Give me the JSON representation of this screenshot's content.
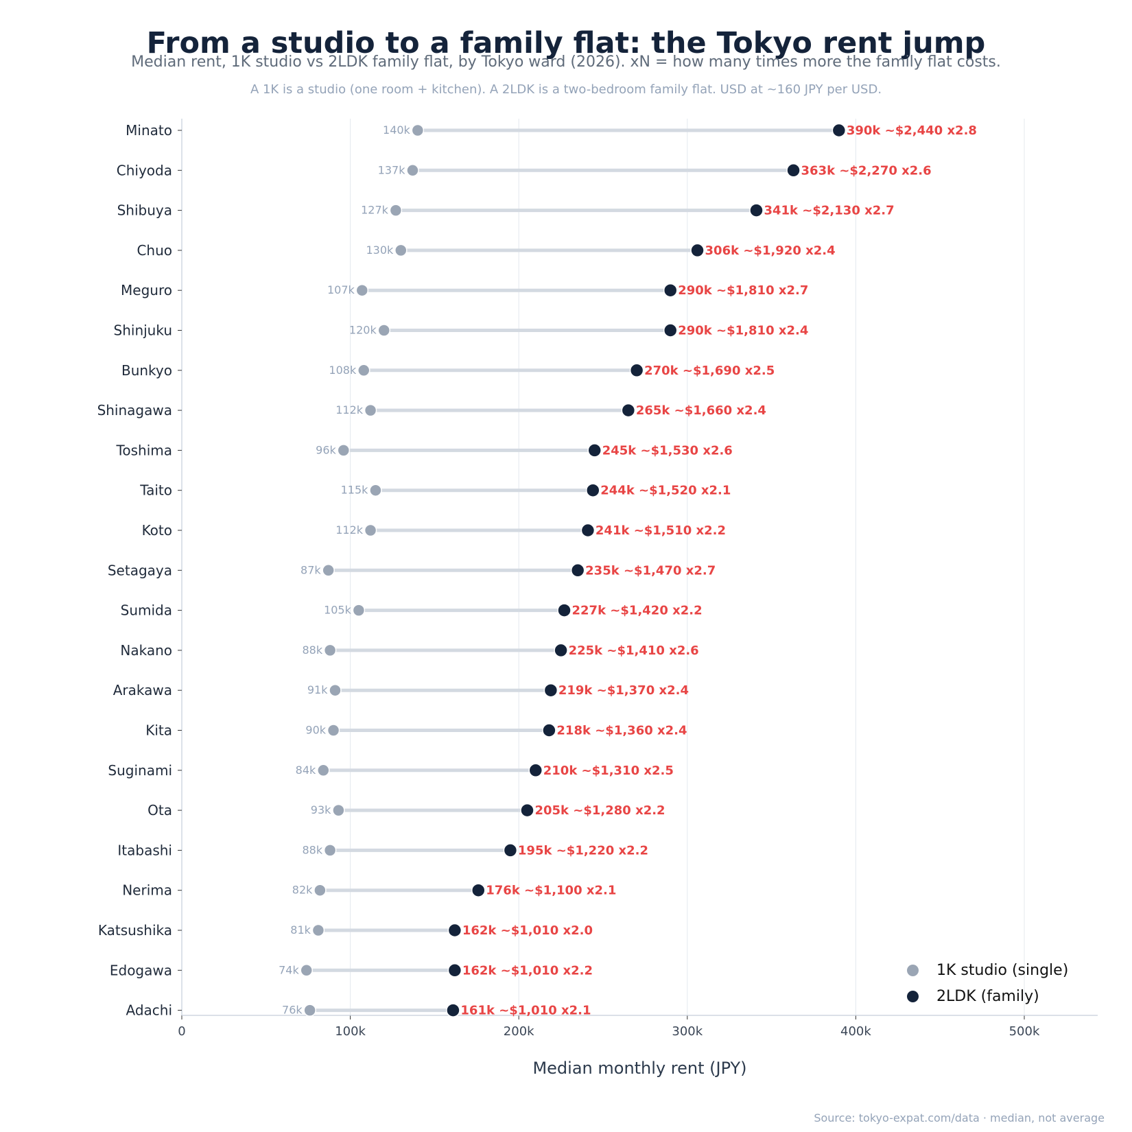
{
  "title": "From a studio to a family flat: the Tokyo rent jump",
  "subtitle": "Median rent, 1K studio vs 2LDK family flat, by Tokyo ward (2026). xN = how many times more the family flat costs.",
  "note": "A 1K is a studio (one room + kitchen). A 2LDK is a two-bedroom family flat. USD at ~160 JPY per USD.",
  "source": "Source: tokyo-expat.com/data  ·  median, not average",
  "colors": {
    "studio": "#9aa5b4",
    "family": "#14233a",
    "connector": "#d3d9e1",
    "annotation": "#e84545",
    "grid": "#e8ecf1",
    "axis": "#c5ceda"
  },
  "legend": [
    {
      "label": "1K studio (single)",
      "color": "#9aa5b4"
    },
    {
      "label": "2LDK (family)",
      "color": "#14233a"
    }
  ],
  "chart_data": {
    "type": "dumbbell",
    "xlabel": "Median monthly rent (JPY)",
    "ylabel": "",
    "xlim": [
      0,
      545000
    ],
    "xticks": [
      0,
      100000,
      200000,
      300000,
      400000,
      500000
    ],
    "xtick_labels": [
      "0",
      "100k",
      "200k",
      "300k",
      "400k",
      "500k"
    ],
    "grid": "vertical",
    "legend_position": "bottom-right",
    "categories": [
      "Minato",
      "Chiyoda",
      "Shibuya",
      "Chuo",
      "Meguro",
      "Shinjuku",
      "Bunkyo",
      "Shinagawa",
      "Toshima",
      "Taito",
      "Koto",
      "Setagaya",
      "Sumida",
      "Nakano",
      "Arakawa",
      "Kita",
      "Suginami",
      "Ota",
      "Itabashi",
      "Nerima",
      "Katsushika",
      "Edogawa",
      "Adachi"
    ],
    "series": [
      {
        "name": "1K studio (single)",
        "values": [
          140000,
          137000,
          127000,
          130000,
          107000,
          120000,
          108000,
          112000,
          96000,
          115000,
          112000,
          87000,
          105000,
          88000,
          91000,
          90000,
          84000,
          93000,
          88000,
          82000,
          81000,
          74000,
          76000
        ],
        "labels": [
          "140k",
          "137k",
          "127k",
          "130k",
          "107k",
          "120k",
          "108k",
          "112k",
          "96k",
          "115k",
          "112k",
          "87k",
          "105k",
          "88k",
          "91k",
          "90k",
          "84k",
          "93k",
          "88k",
          "82k",
          "81k",
          "74k",
          "76k"
        ]
      },
      {
        "name": "2LDK (family)",
        "values": [
          390000,
          363000,
          341000,
          306000,
          290000,
          290000,
          270000,
          265000,
          245000,
          244000,
          241000,
          235000,
          227000,
          225000,
          219000,
          218000,
          210000,
          205000,
          195000,
          176000,
          162000,
          162000,
          161000
        ],
        "labels": [
          "390k",
          "363k",
          "341k",
          "306k",
          "290k",
          "290k",
          "270k",
          "265k",
          "245k",
          "244k",
          "241k",
          "235k",
          "227k",
          "225k",
          "219k",
          "218k",
          "210k",
          "205k",
          "195k",
          "176k",
          "162k",
          "162k",
          "161k"
        ]
      }
    ],
    "annotations": [
      "390k  ~$2,440   x2.8",
      "363k  ~$2,270   x2.6",
      "341k  ~$2,130   x2.7",
      "306k  ~$1,920   x2.4",
      "290k  ~$1,810   x2.7",
      "290k  ~$1,810   x2.4",
      "270k  ~$1,690   x2.5",
      "265k  ~$1,660   x2.4",
      "245k  ~$1,530   x2.6",
      "244k  ~$1,520   x2.1",
      "241k  ~$1,510   x2.2",
      "235k  ~$1,470   x2.7",
      "227k  ~$1,420   x2.2",
      "225k  ~$1,410   x2.6",
      "219k  ~$1,370   x2.4",
      "218k  ~$1,360   x2.4",
      "210k  ~$1,310   x2.5",
      "205k  ~$1,280   x2.2",
      "195k  ~$1,220   x2.2",
      "176k  ~$1,100   x2.1",
      "162k  ~$1,010   x2.0",
      "162k  ~$1,010   x2.2",
      "161k  ~$1,010   x2.1"
    ]
  }
}
